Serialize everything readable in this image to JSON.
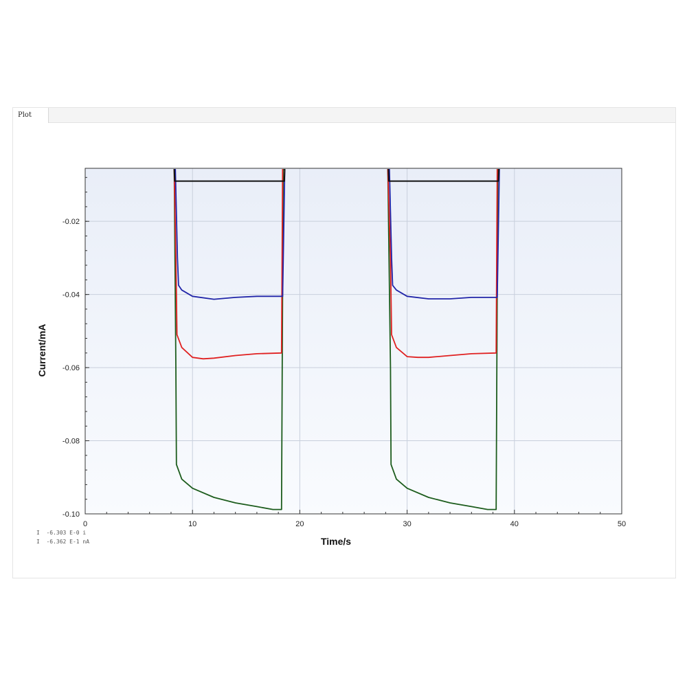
{
  "window": {
    "tab_label": "Plot"
  },
  "readout": [
    "I  -6.303 E-0 i",
    "I  -6.362 E-1 nA"
  ],
  "chart_data": {
    "type": "line",
    "title": "",
    "xlabel": "Time/s",
    "ylabel": "Current/mA",
    "xlim": [
      0,
      50
    ],
    "ylim": [
      -0.1,
      -0.0055
    ],
    "xticks": [
      0,
      10,
      20,
      30,
      40,
      50
    ],
    "yticks": [
      -0.02,
      -0.04,
      -0.06,
      -0.08,
      -0.1
    ],
    "xtick_labels": [
      "0",
      "10",
      "20",
      "30",
      "40",
      "50"
    ],
    "ytick_labels": [
      "-0.02",
      "-0.04",
      "-0.06",
      "-0.08",
      "-0.10"
    ],
    "grid": true,
    "legend": "none",
    "colors": {
      "plot_bg_top": "#e9eef8",
      "plot_bg_bottom": "#f9fbfe",
      "grid": "#c8cfdc"
    },
    "series": [
      {
        "color": "#1c5c1c",
        "x": [
          0,
          8.3,
          8.45,
          8.5,
          9,
          10,
          12,
          14,
          16,
          17.5,
          18.3,
          18.45,
          18.6,
          28.2,
          28.45,
          28.5,
          29,
          30,
          32,
          34,
          36,
          37.5,
          38.3,
          38.45,
          38.6,
          50
        ],
        "y": [
          -0.0055,
          -0.0055,
          -0.06,
          -0.0865,
          -0.0905,
          -0.093,
          -0.0955,
          -0.097,
          -0.098,
          -0.0988,
          -0.0988,
          -0.006,
          -0.0055,
          -0.0055,
          -0.06,
          -0.0865,
          -0.0905,
          -0.093,
          -0.0955,
          -0.097,
          -0.098,
          -0.0988,
          -0.0988,
          -0.006,
          -0.0055,
          -0.0055
        ]
      },
      {
        "color": "#e02020",
        "x": [
          0,
          8.3,
          8.45,
          8.55,
          9,
          10,
          11,
          12,
          14,
          16,
          18.3,
          18.4,
          18.6,
          28.2,
          28.45,
          28.55,
          29,
          30,
          31,
          32,
          34,
          36,
          38.3,
          38.4,
          38.6,
          50
        ],
        "y": [
          -0.0055,
          -0.0055,
          -0.03,
          -0.051,
          -0.0545,
          -0.0572,
          -0.0576,
          -0.0574,
          -0.0567,
          -0.0562,
          -0.056,
          -0.0055,
          -0.0052,
          -0.0055,
          -0.03,
          -0.051,
          -0.0545,
          -0.057,
          -0.0572,
          -0.0572,
          -0.0567,
          -0.0562,
          -0.056,
          -0.0055,
          -0.0052,
          -0.0055
        ]
      },
      {
        "color": "#2024a8",
        "x": [
          0,
          8.4,
          8.6,
          8.7,
          9,
          10,
          12,
          14,
          16,
          18.4,
          18.6,
          28.35,
          28.55,
          28.65,
          29,
          30,
          32,
          34,
          36,
          38.4,
          38.6,
          50
        ],
        "y": [
          -0.0055,
          -0.0055,
          -0.03,
          -0.0375,
          -0.0388,
          -0.0405,
          -0.0413,
          -0.0408,
          -0.0405,
          -0.0405,
          -0.0055,
          -0.0055,
          -0.03,
          -0.0375,
          -0.0388,
          -0.0405,
          -0.0412,
          -0.0412,
          -0.0408,
          -0.0408,
          -0.0055,
          -0.0055
        ]
      },
      {
        "color": "#111111",
        "x": [
          0,
          8.3,
          8.35,
          18.55,
          18.6,
          28.25,
          28.3,
          38.5,
          38.55,
          50
        ],
        "y": [
          -0.0055,
          -0.0055,
          -0.009,
          -0.009,
          -0.0055,
          -0.0055,
          -0.009,
          -0.009,
          -0.0055,
          -0.0055
        ]
      }
    ]
  }
}
